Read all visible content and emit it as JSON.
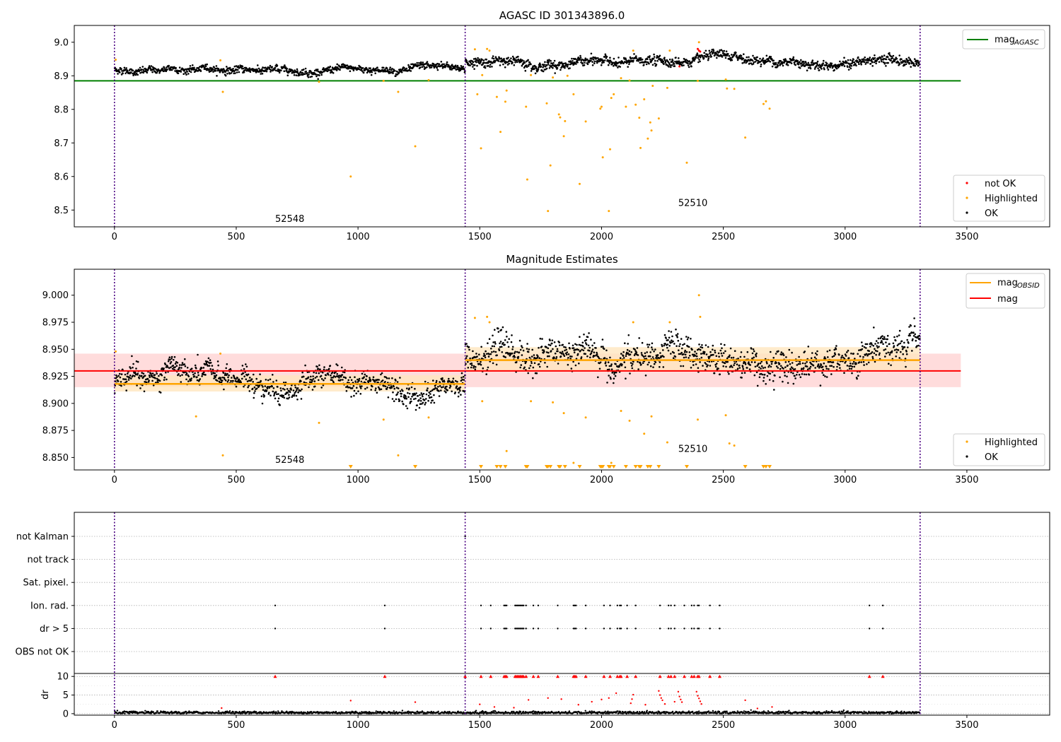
{
  "colors": {
    "ok": "#000000",
    "highlighted": "#ffa500",
    "not_ok": "#ff0000",
    "agasc": "#008000",
    "mag": "#ff0000",
    "obsid": "#ffa500",
    "band": "#ffd0d0",
    "obsid_band": "#ffe6bf",
    "obs_line": "#4b0082"
  },
  "chart_data": [
    {
      "type": "scatter",
      "title": "AGASC ID 301343896.0",
      "xlabel": "",
      "ylabel": "",
      "xlim": [
        -165,
        3840
      ],
      "ylim": [
        8.45,
        9.05
      ],
      "xticks": [
        "0",
        "500",
        "1000",
        "1500",
        "2000",
        "2500",
        "3000",
        "3500"
      ],
      "yticks": [
        "8.5",
        "8.6",
        "8.7",
        "8.8",
        "8.9",
        "9.0"
      ],
      "obs_boundaries": [
        0,
        1440,
        3308
      ],
      "obsid_labels": [
        {
          "text": "52548",
          "x": 720,
          "y": 8.465
        },
        {
          "text": "52510",
          "x": 2375,
          "y": 8.512
        }
      ],
      "mag_agasc": 8.885,
      "mag_agasc_xrange": [
        -165,
        3475
      ],
      "segments": [
        {
          "x0": 0,
          "x1": 1440,
          "mean": 8.918,
          "spread": 0.009
        },
        {
          "x0": 1440,
          "x1": 3308,
          "mean": 8.942,
          "spread": 0.012
        }
      ],
      "highlighted": [
        [
          5,
          8.948
        ],
        [
          435,
          8.946
        ],
        [
          445,
          8.852
        ],
        [
          840,
          8.882
        ],
        [
          970,
          8.6
        ],
        [
          1105,
          8.885
        ],
        [
          1165,
          8.852
        ],
        [
          1235,
          8.69
        ],
        [
          1290,
          8.887
        ],
        [
          1480,
          8.979
        ],
        [
          1490,
          8.845
        ],
        [
          1505,
          8.684
        ],
        [
          1510,
          8.902
        ],
        [
          1530,
          8.98
        ],
        [
          1540,
          8.975
        ],
        [
          1570,
          8.837
        ],
        [
          1585,
          8.733
        ],
        [
          1605,
          8.823
        ],
        [
          1610,
          8.856
        ],
        [
          1690,
          8.808
        ],
        [
          1695,
          8.591
        ],
        [
          1710,
          8.902
        ],
        [
          1775,
          8.818
        ],
        [
          1780,
          8.497
        ],
        [
          1790,
          8.633
        ],
        [
          1800,
          8.895
        ],
        [
          1825,
          8.785
        ],
        [
          1830,
          8.776
        ],
        [
          1845,
          8.72
        ],
        [
          1850,
          8.765
        ],
        [
          1860,
          8.9
        ],
        [
          1885,
          8.845
        ],
        [
          1910,
          8.578
        ],
        [
          1935,
          8.764
        ],
        [
          1995,
          8.802
        ],
        [
          2000,
          8.808
        ],
        [
          2005,
          8.657
        ],
        [
          2030,
          8.497
        ],
        [
          2035,
          8.681
        ],
        [
          2040,
          8.834
        ],
        [
          2050,
          8.845
        ],
        [
          2080,
          8.893
        ],
        [
          2100,
          8.808
        ],
        [
          2115,
          8.886
        ],
        [
          2130,
          8.975
        ],
        [
          2140,
          8.814
        ],
        [
          2155,
          8.775
        ],
        [
          2160,
          8.685
        ],
        [
          2175,
          8.83
        ],
        [
          2190,
          8.713
        ],
        [
          2200,
          8.761
        ],
        [
          2205,
          8.737
        ],
        [
          2210,
          8.87
        ],
        [
          2235,
          8.773
        ],
        [
          2270,
          8.864
        ],
        [
          2280,
          8.975
        ],
        [
          2350,
          8.641
        ],
        [
          2395,
          8.885
        ],
        [
          2400,
          9.0
        ],
        [
          2510,
          8.889
        ],
        [
          2515,
          8.862
        ],
        [
          2545,
          8.861
        ],
        [
          2590,
          8.716
        ],
        [
          2665,
          8.816
        ],
        [
          2675,
          8.824
        ],
        [
          2690,
          8.802
        ]
      ],
      "not_ok": [
        [
          2320,
          8.928
        ],
        [
          2395,
          8.98
        ],
        [
          2400,
          8.975
        ],
        [
          2405,
          8.972
        ]
      ],
      "legend": {
        "position": "top-right",
        "entries": [
          {
            "label": "mag",
            "sub": "AGASC"
          }
        ]
      },
      "legend2": {
        "position": "lower-right",
        "entries": [
          "not OK",
          "Highlighted",
          "OK"
        ]
      }
    },
    {
      "type": "scatter",
      "title": "Magnitude Estimates",
      "xlabel": "",
      "ylabel": "",
      "xlim": [
        -165,
        3840
      ],
      "ylim": [
        8.8385,
        9.024
      ],
      "xticks": [
        "0",
        "500",
        "1000",
        "1500",
        "2000",
        "2500",
        "3000",
        "3500"
      ],
      "yticks": [
        "8.850",
        "8.875",
        "8.900",
        "8.925",
        "8.950",
        "8.975",
        "9.000"
      ],
      "obs_boundaries": [
        0,
        1440,
        3308
      ],
      "obsid_labels": [
        {
          "text": "52548",
          "x": 720,
          "y": 8.845
        },
        {
          "text": "52510",
          "x": 2375,
          "y": 8.855
        }
      ],
      "mag": 8.93,
      "mag_band": [
        8.915,
        8.946
      ],
      "mag_xrange": [
        -165,
        3475
      ],
      "mag_obsid": [
        {
          "x0": 0,
          "x1": 1440,
          "mag": 8.918,
          "band": [
            8.911,
            8.926
          ]
        },
        {
          "x0": 1440,
          "x1": 3308,
          "mag": 8.94,
          "band": [
            8.93,
            8.952
          ]
        }
      ],
      "segments": [
        {
          "x0": 0,
          "x1": 1440,
          "mean": 8.918,
          "spread": 0.009
        },
        {
          "x0": 1440,
          "x1": 3308,
          "mean": 8.942,
          "spread": 0.012
        }
      ],
      "highlighted": [
        [
          5,
          8.948
        ],
        [
          335,
          8.888
        ],
        [
          435,
          8.946
        ],
        [
          445,
          8.852
        ],
        [
          840,
          8.882
        ],
        [
          1105,
          8.885
        ],
        [
          1165,
          8.852
        ],
        [
          1290,
          8.887
        ],
        [
          1480,
          8.979
        ],
        [
          1510,
          8.902
        ],
        [
          1530,
          8.98
        ],
        [
          1540,
          8.975
        ],
        [
          1610,
          8.856
        ],
        [
          1710,
          8.902
        ],
        [
          1800,
          8.901
        ],
        [
          1845,
          8.891
        ],
        [
          1885,
          8.845
        ],
        [
          1935,
          8.887
        ],
        [
          2040,
          8.845
        ],
        [
          2080,
          8.893
        ],
        [
          2115,
          8.884
        ],
        [
          2130,
          8.975
        ],
        [
          2175,
          8.872
        ],
        [
          2205,
          8.888
        ],
        [
          2270,
          8.864
        ],
        [
          2280,
          8.975
        ],
        [
          2395,
          8.885
        ],
        [
          2400,
          9.0
        ],
        [
          2405,
          8.98
        ],
        [
          2510,
          8.889
        ],
        [
          2525,
          8.863
        ],
        [
          2545,
          8.861
        ]
      ],
      "below_axis": [
        970,
        1235,
        1505,
        1570,
        1585,
        1605,
        1690,
        1695,
        1775,
        1780,
        1790,
        1825,
        1830,
        1850,
        1910,
        1995,
        2000,
        2005,
        2030,
        2035,
        2050,
        2100,
        2140,
        2155,
        2160,
        2190,
        2200,
        2235,
        2350,
        2590,
        2665,
        2675,
        2690
      ],
      "legend": {
        "position": "top-right",
        "entries": [
          {
            "label": "mag",
            "sub": "OBSID"
          },
          {
            "label": "mag",
            "sub": ""
          }
        ]
      },
      "legend2": {
        "position": "lower-right",
        "entries": [
          "Highlighted",
          "OK"
        ]
      }
    },
    {
      "type": "scatter",
      "title": "",
      "xlabel": "",
      "ylabel": "",
      "xlim": [
        -165,
        3840
      ],
      "xticks": [
        "0",
        "500",
        "1000",
        "1500",
        "2000",
        "2500",
        "3000",
        "3500"
      ],
      "obs_boundaries": [
        0,
        1440,
        3308
      ],
      "flag_rows": [
        "not Kalman",
        "not track",
        "Sat. pixel.",
        "Ion. rad.",
        "dr > 5",
        "OBS not OK"
      ],
      "flag_points": {
        "not Kalman": [
          1440
        ],
        "not track": [],
        "Sat. pixel.": [],
        "Ion. rad.": [
          660,
          1110,
          1505,
          1545,
          1600,
          1605,
          1610,
          1645,
          1650,
          1655,
          1660,
          1665,
          1670,
          1675,
          1680,
          1690,
          1720,
          1740,
          1820,
          1885,
          1890,
          1895,
          1935,
          2010,
          2035,
          2065,
          2075,
          2080,
          2105,
          2140,
          2240,
          2275,
          2285,
          2300,
          2340,
          2370,
          2380,
          2395,
          2400,
          2445,
          2485,
          3100,
          3155
        ],
        "dr > 5": [
          660,
          1110,
          1505,
          1545,
          1600,
          1605,
          1610,
          1645,
          1650,
          1655,
          1660,
          1665,
          1670,
          1675,
          1680,
          1690,
          1720,
          1740,
          1820,
          1885,
          1890,
          1895,
          1935,
          2010,
          2035,
          2065,
          2075,
          2080,
          2105,
          2140,
          2240,
          2275,
          2285,
          2300,
          2340,
          2370,
          2380,
          2395,
          2400,
          2445,
          2485,
          3100,
          3155
        ],
        "OBS not OK": []
      },
      "dr": {
        "ylabel": "dr",
        "ylim": [
          -0.4,
          10.8
        ],
        "yticks": [
          "0",
          "5",
          "10"
        ],
        "yvals": [
          0,
          5,
          10
        ],
        "spread": 0.2,
        "clipped": [
          660,
          1110,
          1440,
          1505,
          1545,
          1600,
          1605,
          1610,
          1645,
          1650,
          1655,
          1660,
          1665,
          1670,
          1675,
          1680,
          1690,
          1720,
          1740,
          1820,
          1885,
          1890,
          1895,
          1935,
          2010,
          2035,
          2065,
          2075,
          2080,
          2105,
          2140,
          2240,
          2275,
          2285,
          2300,
          2340,
          2370,
          2380,
          2395,
          2400,
          2445,
          2485,
          3100,
          3155
        ],
        "outliers": [
          [
            440,
            1.5
          ],
          [
            970,
            3.5
          ],
          [
            1235,
            3.1
          ],
          [
            1500,
            2.5
          ],
          [
            1560,
            1.8
          ],
          [
            1640,
            1.6
          ],
          [
            1700,
            3.7
          ],
          [
            1780,
            4.2
          ],
          [
            1835,
            3.9
          ],
          [
            1905,
            2.4
          ],
          [
            1960,
            3.2
          ],
          [
            2000,
            3.8
          ],
          [
            2030,
            4.2
          ],
          [
            2060,
            5.5
          ],
          [
            2120,
            2.8
          ],
          [
            2125,
            3.9
          ],
          [
            2130,
            5.1
          ],
          [
            2180,
            2.4
          ],
          [
            2235,
            6.1
          ],
          [
            2240,
            5.0
          ],
          [
            2245,
            4.2
          ],
          [
            2250,
            3.6
          ],
          [
            2260,
            2.6
          ],
          [
            2300,
            3.2
          ],
          [
            2315,
            5.9
          ],
          [
            2320,
            4.6
          ],
          [
            2325,
            3.8
          ],
          [
            2330,
            3.1
          ],
          [
            2390,
            5.9
          ],
          [
            2395,
            4.8
          ],
          [
            2400,
            4.1
          ],
          [
            2405,
            3.3
          ],
          [
            2410,
            2.6
          ],
          [
            2590,
            3.6
          ],
          [
            2640,
            1.4
          ],
          [
            2700,
            1.8
          ]
        ]
      }
    }
  ],
  "legend_labels": {
    "mag_agasc": "mag",
    "mag_agasc_sub": "AGASC",
    "mag_obsid": "mag",
    "mag_obsid_sub": "OBSID",
    "mag": "mag",
    "not_ok": "not OK",
    "highlighted": "Highlighted",
    "ok": "OK"
  }
}
